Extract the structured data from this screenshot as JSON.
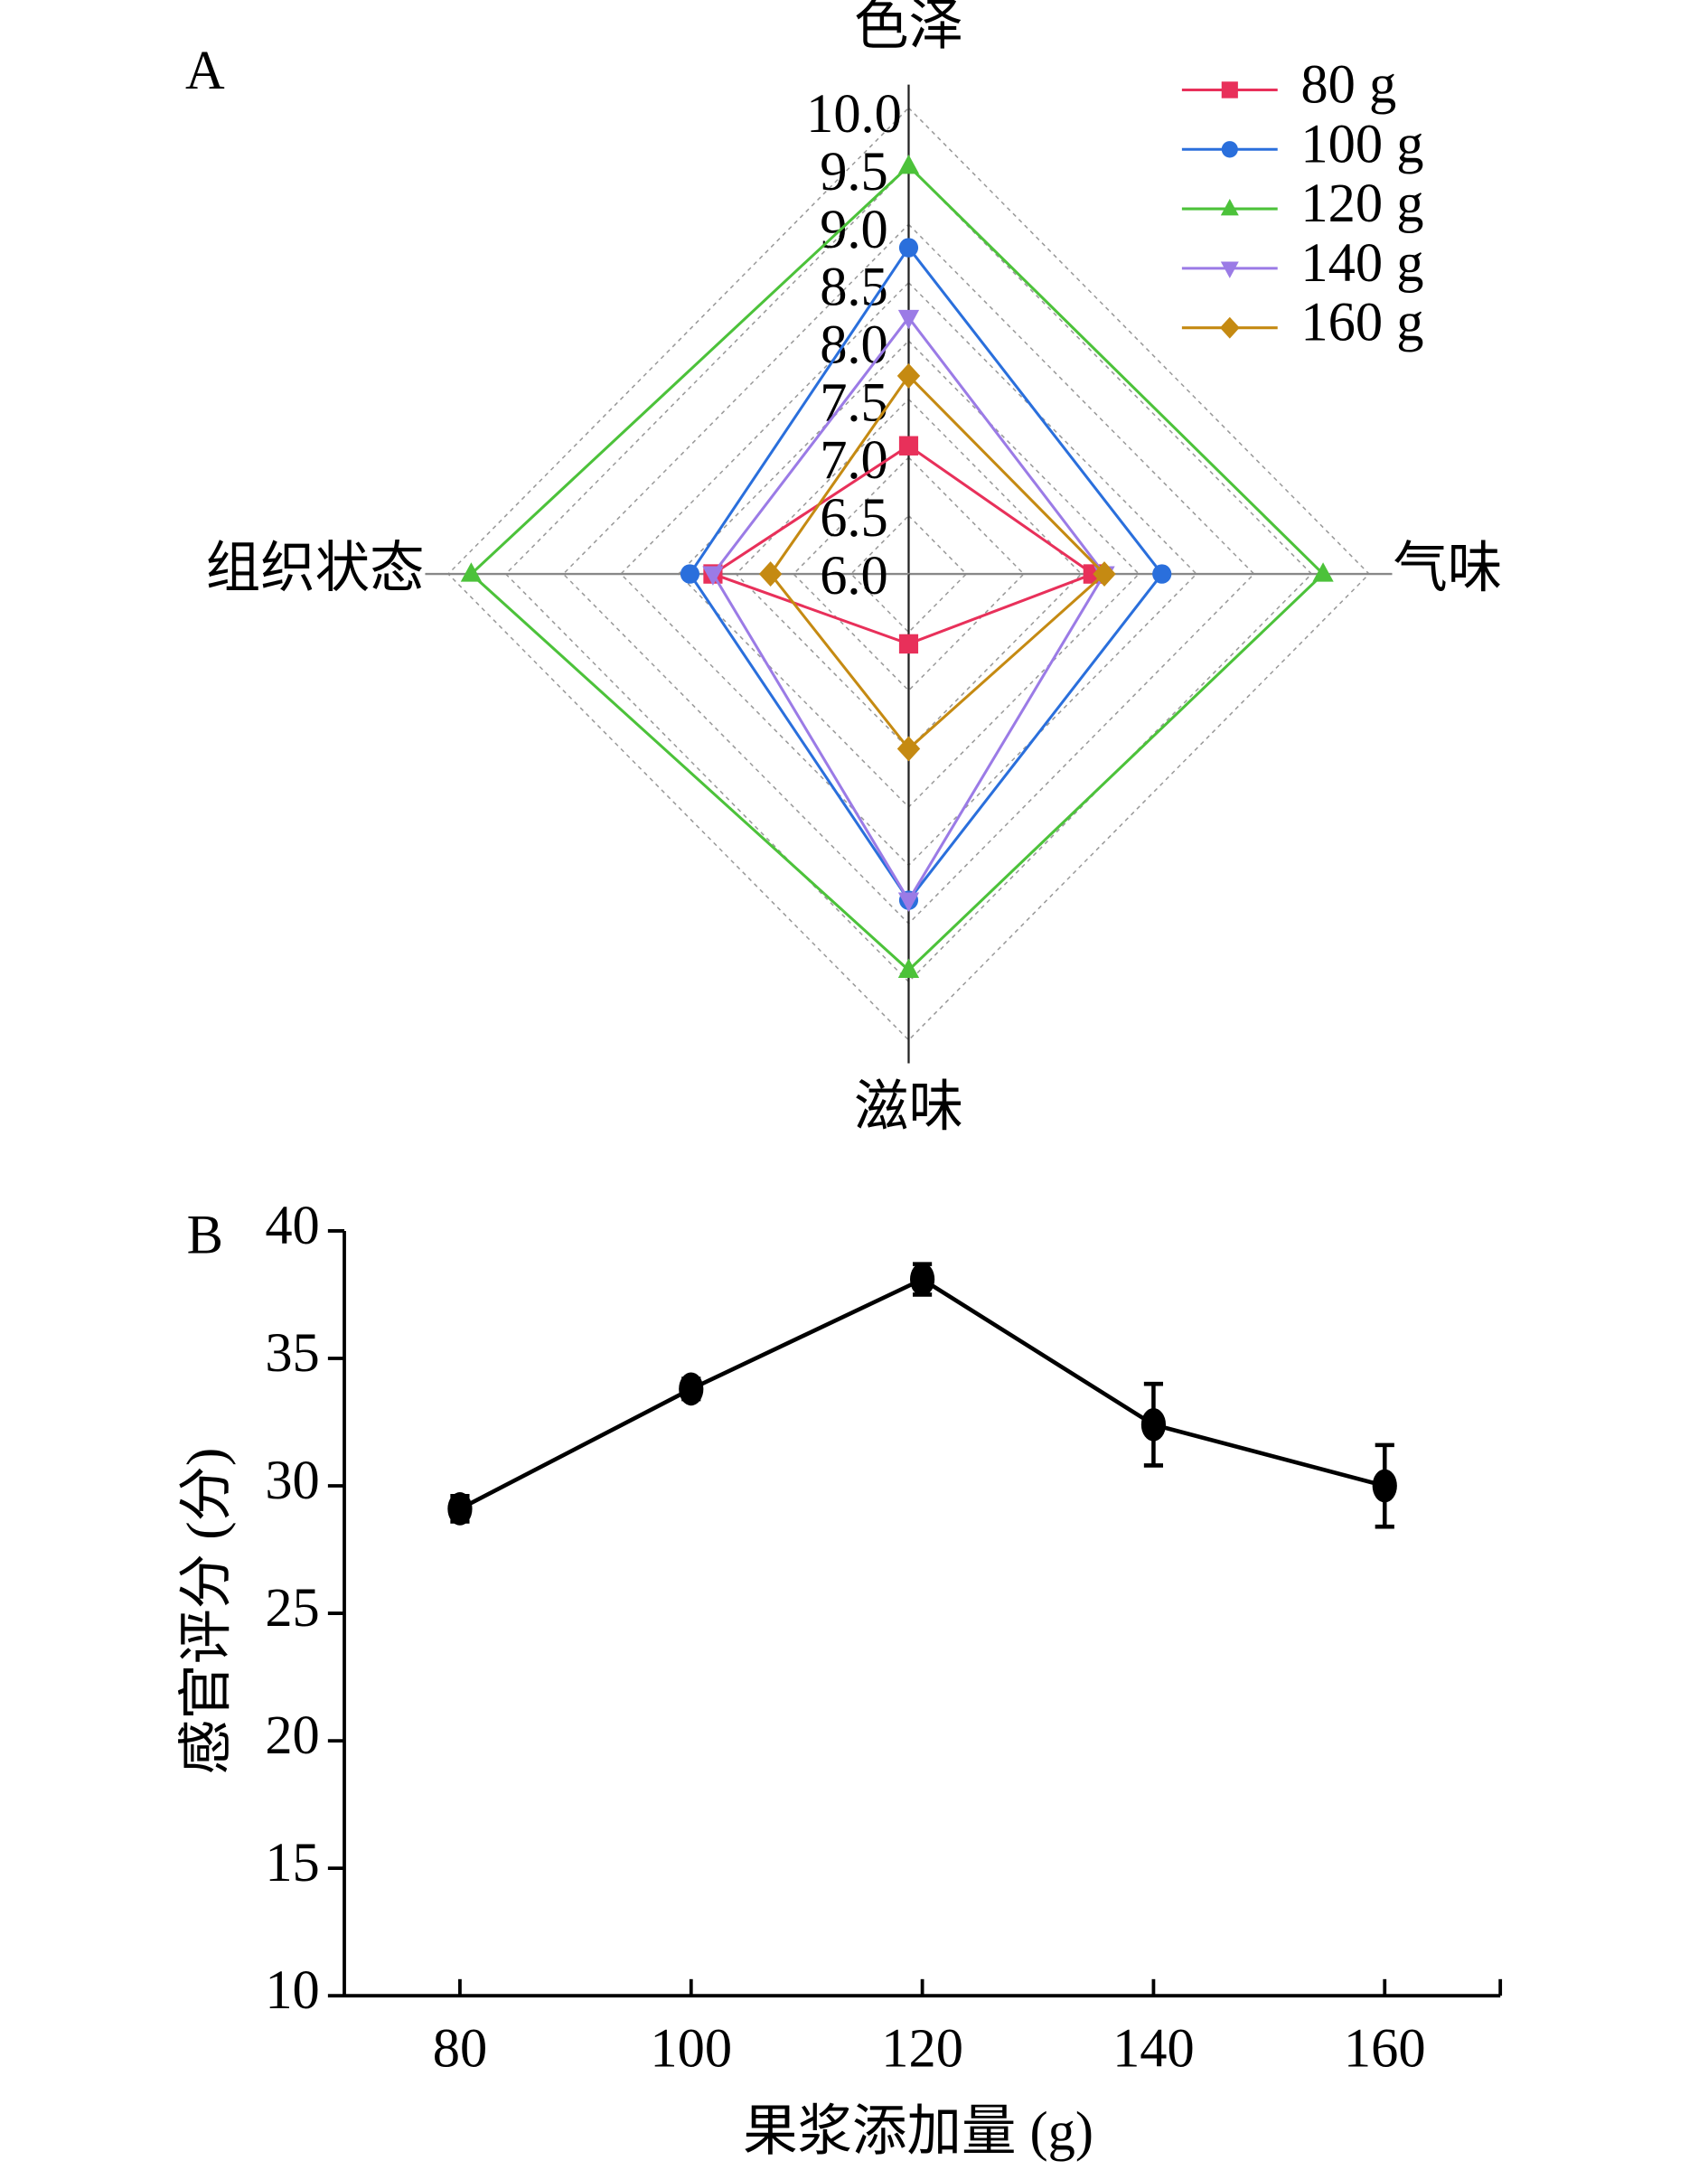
{
  "chart_data": [
    {
      "type": "radar",
      "panel_label": "A",
      "categories": [
        "色泽",
        "气味",
        "滋味",
        "组织状态"
      ],
      "rlim": [
        6,
        10
      ],
      "rticks": [
        {
          "value": 6,
          "label": "6.0"
        },
        {
          "value": 6.5,
          "label": "6.5"
        },
        {
          "value": 7,
          "label": "7.0"
        },
        {
          "value": 7.5,
          "label": "7.5"
        },
        {
          "value": 8,
          "label": "8.0"
        },
        {
          "value": 8.5,
          "label": "8.5"
        },
        {
          "value": 9,
          "label": "9.0"
        },
        {
          "value": 9.5,
          "label": "9.5"
        },
        {
          "value": 10,
          "label": "10.0"
        }
      ],
      "grid": true,
      "legend": "upper right",
      "series": [
        {
          "name": "80 g",
          "color": "#e8305a",
          "marker": "square",
          "values": [
            7.1,
            7.6,
            6.6,
            7.7
          ]
        },
        {
          "name": "100 g",
          "color": "#2a6fdc",
          "marker": "circle",
          "values": [
            8.8,
            8.2,
            8.8,
            7.9
          ]
        },
        {
          "name": "120 g",
          "color": "#4cc23a",
          "marker": "triangle-up",
          "values": [
            9.5,
            9.6,
            9.4,
            9.8
          ]
        },
        {
          "name": "140 g",
          "color": "#9b7be6",
          "marker": "triangle-down",
          "values": [
            8.2,
            7.7,
            8.8,
            7.7
          ]
        },
        {
          "name": "160 g",
          "color": "#c58a12",
          "marker": "diamond",
          "values": [
            7.7,
            7.7,
            7.5,
            7.2
          ]
        }
      ]
    },
    {
      "type": "line",
      "panel_label": "B",
      "x_label": "果浆添加量 (g)",
      "y_label": "感官评分 (分)",
      "x": [
        80,
        100,
        120,
        140,
        160
      ],
      "values": [
        29.1,
        33.8,
        38.1,
        32.4,
        30.0
      ],
      "errors": [
        0.5,
        0.4,
        0.6,
        1.6,
        1.6
      ],
      "color": "#000000",
      "xlim": [
        70,
        170
      ],
      "xticks": [
        80,
        100,
        120,
        140,
        160
      ],
      "ylim": [
        10,
        40
      ],
      "yticks": [
        10,
        15,
        20,
        25,
        30,
        35,
        40
      ]
    }
  ]
}
